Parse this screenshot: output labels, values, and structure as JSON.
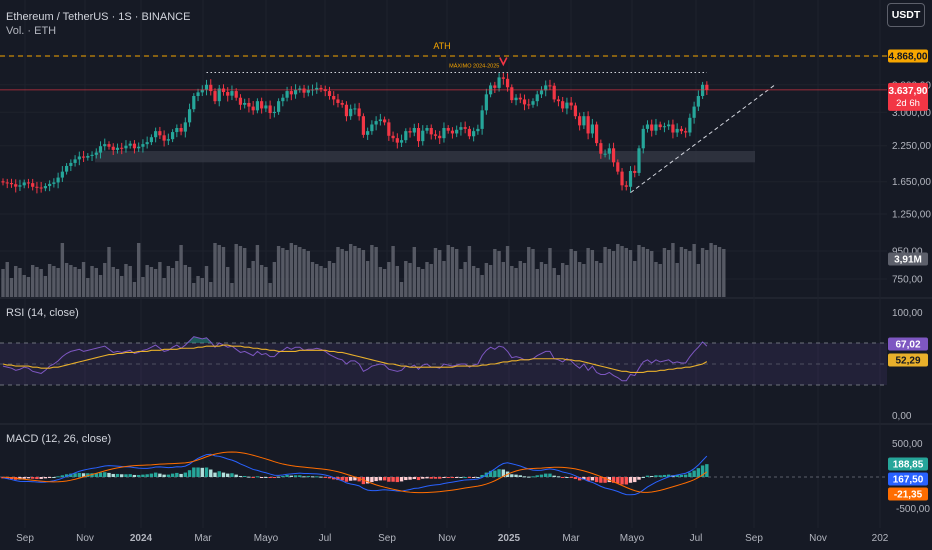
{
  "header": {
    "title": "Ethereum / TetherUS · 1S · BINANCE",
    "volume_label": "Vol. · ETH",
    "currency_button": "USDT"
  },
  "colors": {
    "background": "#161a25",
    "grid": "#1e222d",
    "up": "#26a69a",
    "down": "#f23645",
    "volume": "#5d606b",
    "rsi_line": "#7e57c2",
    "rsi_ma": "#e9b02b",
    "macd_line": "#2962ff",
    "signal_line": "#ff6d00",
    "ath": "#f7a600"
  },
  "chart_data": [
    {
      "type": "candlestick",
      "pane": "price",
      "y_axis_ticks": [
        "4.868,00",
        "3.800,00",
        "3.000,00",
        "2.250,00",
        "1.650,00",
        "1.250,00",
        "950,00",
        "750,00"
      ],
      "x_axis_ticks": [
        "Sep",
        "Nov",
        "2024",
        "Mar",
        "Mayo",
        "Jul",
        "Sep",
        "Nov",
        "2025",
        "Mar",
        "Mayo",
        "Jul",
        "Sep",
        "Nov",
        "202"
      ],
      "annotations": {
        "ath_label": "ATH",
        "ath_value": 4868,
        "ath_tag": "4.868,00",
        "max_label": "MÁXIMO 2024-2025",
        "current_price_tag": "3.637,90",
        "countdown": "2d 6h"
      },
      "support_zone": [
        1950,
        2150
      ],
      "closes": [
        1640,
        1632,
        1615,
        1582,
        1600,
        1640,
        1630,
        1580,
        1570,
        1560,
        1590,
        1620,
        1640,
        1710,
        1800,
        1890,
        1940,
        2000,
        2050,
        2030,
        2060,
        2080,
        2120,
        2240,
        2280,
        2230,
        2170,
        2210,
        2200,
        2250,
        2290,
        2200,
        2230,
        2280,
        2320,
        2420,
        2550,
        2460,
        2350,
        2380,
        2530,
        2620,
        2540,
        2750,
        3080,
        3450,
        3560,
        3650,
        3800,
        3600,
        3300,
        3680,
        3570,
        3460,
        3600,
        3400,
        3200,
        3250,
        3150,
        3050,
        3300,
        3100,
        3180,
        2980,
        3010,
        3300,
        3400,
        3600,
        3500,
        3640,
        3680,
        3550,
        3640,
        3650,
        3700,
        3660,
        3600,
        3450,
        3350,
        3250,
        3200,
        2900,
        3090,
        3100,
        2900,
        2470,
        2550,
        2700,
        2780,
        2820,
        2750,
        2450,
        2400,
        2310,
        2360,
        2550,
        2520,
        2620,
        2340,
        2560,
        2620,
        2480,
        2450,
        2400,
        2620,
        2560,
        2500,
        2580,
        2640,
        2600,
        2440,
        2550,
        2600,
        3050,
        3500,
        3780,
        3700,
        4050,
        4000,
        3720,
        3330,
        3400,
        3350,
        3210,
        3200,
        3300,
        3500,
        3620,
        3780,
        3770,
        3350,
        3300,
        3100,
        3260,
        3180,
        2900,
        2680,
        2900,
        2500,
        2700,
        2300,
        2100,
        2100,
        2200,
        1950,
        1800,
        1600,
        1580,
        1810,
        1780,
        2200,
        2600,
        2700,
        2560,
        2700,
        2640,
        2660,
        2700,
        2520,
        2600,
        2550,
        2520,
        2860,
        3150,
        3450,
        3800,
        3637.9
      ],
      "volume_last_tag": "3,91M",
      "volume_tiers": [
        2,
        2,
        1,
        2,
        2,
        1,
        1,
        2,
        2,
        2,
        1,
        2,
        2,
        2,
        3,
        2,
        2,
        2,
        2,
        2,
        1,
        2,
        2,
        1,
        2,
        3,
        2,
        2,
        1,
        2,
        2,
        1,
        3,
        1,
        2,
        2,
        2,
        2,
        1,
        2,
        2,
        2,
        3,
        2,
        2,
        1,
        1,
        1,
        2,
        1,
        3,
        3,
        3,
        2,
        1,
        3,
        3,
        3,
        2,
        2,
        3,
        2,
        2,
        1,
        2,
        3,
        3,
        3,
        3,
        3,
        3,
        3,
        3,
        2,
        2,
        2,
        2,
        2,
        2,
        3,
        3,
        3,
        3,
        3,
        3,
        3,
        2,
        3,
        3,
        2,
        2,
        2,
        3,
        2,
        1,
        2,
        2,
        3,
        2,
        2,
        2,
        2,
        3,
        3,
        2,
        3,
        3,
        3,
        2,
        2,
        3,
        2,
        2,
        1,
        2,
        2,
        3,
        3,
        2,
        3,
        2,
        2,
        2,
        2,
        3,
        3,
        2,
        2,
        2,
        3,
        2,
        1,
        2,
        2,
        3,
        3,
        2,
        2,
        3,
        3,
        2,
        2,
        3,
        3,
        3,
        3,
        3,
        3,
        3,
        2,
        3,
        3,
        3,
        3,
        2,
        2,
        3,
        3,
        3,
        2,
        3,
        3,
        3,
        3,
        2,
        3,
        3,
        3,
        3,
        3,
        3
      ]
    },
    {
      "type": "line",
      "pane": "rsi",
      "label": "RSI (14, close)",
      "y_axis_ticks": [
        "100,00",
        "0,00"
      ],
      "levels": [
        70,
        50,
        30
      ],
      "y_range": [
        0,
        100
      ],
      "last_rsi_tag": "67,02",
      "last_ma_tag": "52,29",
      "series": [
        {
          "name": "RSI",
          "values": [
            48,
            47,
            46,
            44,
            45,
            47,
            46,
            43,
            42,
            41,
            44,
            48,
            50,
            53,
            57,
            60,
            62,
            63,
            64,
            62,
            63,
            64,
            65,
            66,
            67,
            64,
            61,
            62,
            61,
            62,
            63,
            60,
            61,
            63,
            64,
            66,
            68,
            65,
            62,
            63,
            66,
            68,
            65,
            68,
            72,
            76,
            75,
            74,
            75,
            71,
            66,
            70,
            68,
            66,
            67,
            64,
            61,
            62,
            60,
            58,
            62,
            59,
            60,
            57,
            57,
            61,
            63,
            66,
            64,
            66,
            66,
            63,
            64,
            64,
            65,
            64,
            62,
            59,
            57,
            55,
            54,
            50,
            53,
            53,
            50,
            43,
            45,
            48,
            49,
            50,
            49,
            45,
            44,
            43,
            44,
            48,
            47,
            49,
            45,
            49,
            50,
            47,
            47,
            46,
            50,
            49,
            48,
            49,
            50,
            50,
            47,
            49,
            50,
            58,
            63,
            66,
            64,
            67,
            66,
            62,
            56,
            57,
            56,
            54,
            54,
            55,
            58,
            60,
            62,
            62,
            55,
            54,
            52,
            55,
            53,
            49,
            46,
            50,
            44,
            48,
            42,
            40,
            40,
            42,
            39,
            37,
            34,
            34,
            40,
            39,
            46,
            52,
            54,
            51,
            54,
            52,
            53,
            54,
            51,
            52,
            51,
            51,
            57,
            62,
            66,
            71,
            67
          ]
        },
        {
          "name": "MA",
          "values": [
            50,
            49,
            49,
            48,
            48,
            48,
            48,
            47,
            47,
            46,
            46,
            46,
            47,
            47,
            48,
            49,
            50,
            51,
            52,
            53,
            54,
            55,
            56,
            57,
            58,
            59,
            59,
            60,
            60,
            61,
            61,
            61,
            62,
            62,
            62,
            63,
            63,
            63,
            64,
            64,
            64,
            64,
            65,
            65,
            65,
            65,
            66,
            66,
            67,
            67,
            67,
            67,
            68,
            68,
            67,
            67,
            67,
            66,
            66,
            65,
            65,
            64,
            64,
            63,
            63,
            62,
            62,
            62,
            62,
            62,
            63,
            63,
            63,
            63,
            63,
            63,
            63,
            62,
            62,
            61,
            61,
            60,
            59,
            58,
            57,
            56,
            55,
            54,
            53,
            52,
            51,
            50,
            50,
            49,
            48,
            48,
            47,
            47,
            47,
            47,
            47,
            47,
            47,
            47,
            47,
            47,
            47,
            48,
            48,
            48,
            48,
            48,
            48,
            49,
            49,
            50,
            50,
            51,
            52,
            52,
            53,
            53,
            54,
            54,
            54,
            55,
            55,
            55,
            55,
            55,
            55,
            55,
            55,
            54,
            54,
            53,
            53,
            52,
            51,
            50,
            49,
            48,
            47,
            46,
            45,
            44,
            43,
            43,
            42,
            42,
            42,
            42,
            43,
            43,
            43,
            44,
            44,
            45,
            45,
            46,
            46,
            47,
            47,
            48,
            49,
            50,
            52.29
          ]
        }
      ]
    },
    {
      "type": "bar",
      "pane": "macd",
      "label": "MACD (12, 26, close)",
      "y_axis_ticks": [
        "500,00",
        "-500,00"
      ],
      "y_range": [
        -600,
        600
      ],
      "last_hist_tag": "188,85",
      "last_macd_tag": "167,50",
      "last_signal_tag": "-21,35",
      "histogram": [
        -20,
        -25,
        -30,
        -40,
        -35,
        -25,
        -20,
        -25,
        -30,
        -28,
        -20,
        -10,
        0,
        10,
        25,
        40,
        50,
        55,
        60,
        55,
        55,
        55,
        55,
        65,
        70,
        60,
        45,
        45,
        40,
        40,
        42,
        30,
        30,
        35,
        40,
        50,
        65,
        50,
        35,
        35,
        50,
        60,
        45,
        65,
        100,
        140,
        140,
        135,
        140,
        110,
        65,
        85,
        65,
        50,
        55,
        35,
        15,
        15,
        5,
        -5,
        10,
        -5,
        0,
        -15,
        -15,
        5,
        15,
        30,
        20,
        25,
        25,
        10,
        15,
        10,
        10,
        5,
        -5,
        -20,
        -35,
        -45,
        -50,
        -70,
        -55,
        -50,
        -65,
        -105,
        -95,
        -75,
        -60,
        -50,
        -50,
        -70,
        -70,
        -75,
        -65,
        -45,
        -40,
        -30,
        -45,
        -25,
        -20,
        -25,
        -25,
        -25,
        -10,
        -10,
        -10,
        -5,
        0,
        0,
        -10,
        -5,
        0,
        30,
        65,
        90,
        95,
        115,
        110,
        80,
        40,
        35,
        25,
        10,
        5,
        10,
        25,
        35,
        50,
        50,
        20,
        10,
        -10,
        0,
        -10,
        -30,
        -50,
        -35,
        -60,
        -50,
        -75,
        -85,
        -85,
        -75,
        -85,
        -95,
        -110,
        -110,
        -85,
        -75,
        -40,
        0,
        20,
        15,
        25,
        25,
        30,
        35,
        25,
        30,
        30,
        35,
        65,
        95,
        130,
        170,
        188.85
      ]
    }
  ]
}
